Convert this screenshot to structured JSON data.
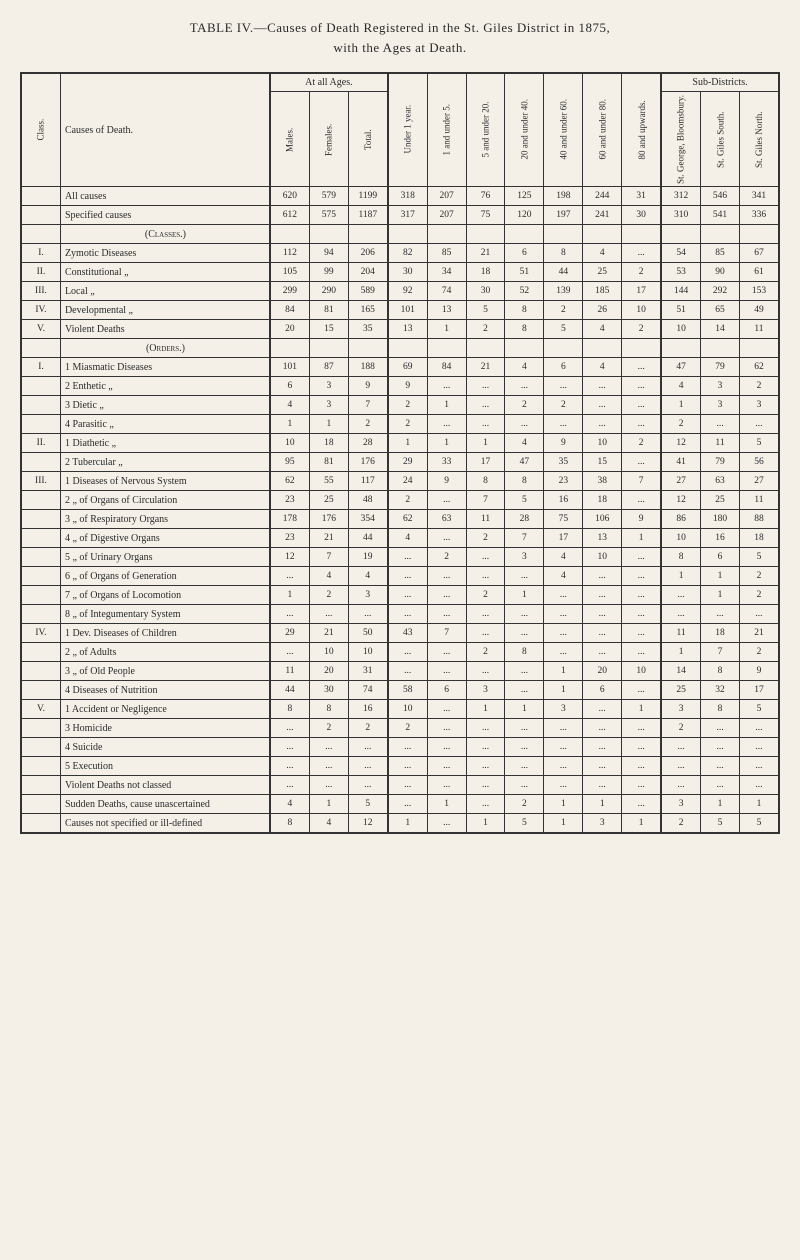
{
  "title": "TABLE IV.—Causes of Death Registered in the St. Giles District in 1875,",
  "subtitle": "with the Ages at Death.",
  "headers": {
    "class": "Class.",
    "causes": "Causes of Death.",
    "allAges": "At all Ages.",
    "males": "Males.",
    "females": "Females.",
    "total": "Total.",
    "under1": "Under 1 year.",
    "and1_5": "1 and under 5.",
    "and5_20": "5 and under 20.",
    "and20_40": "20 and under 40.",
    "and40_60": "40 and under 60.",
    "and60_80": "60 and under 80.",
    "and80up": "80 and upwards.",
    "subDistricts": "Sub-Districts.",
    "stGeorge": "St. George, Bloomsbury.",
    "stGilesSouth": "St. Giles South.",
    "stGilesNorth": "St. Giles North."
  },
  "rows": [
    {
      "class": "",
      "cause": "All causes",
      "m": "620",
      "f": "579",
      "t": "1199",
      "u1": "318",
      "a1": "207",
      "a5": "76",
      "a20": "125",
      "a40": "198",
      "a60": "244",
      "a80": "31",
      "sg": "312",
      "gs": "546",
      "gn": "341"
    },
    {
      "class": "",
      "cause": "Specified causes",
      "m": "612",
      "f": "575",
      "t": "1187",
      "u1": "317",
      "a1": "207",
      "a5": "75",
      "a20": "120",
      "a40": "197",
      "a60": "241",
      "a80": "30",
      "sg": "310",
      "gs": "541",
      "gn": "336"
    },
    {
      "class": "",
      "cause": "(Classes.)",
      "section": true
    },
    {
      "class": "I.",
      "cause": "Zymotic Diseases",
      "m": "112",
      "f": "94",
      "t": "206",
      "u1": "82",
      "a1": "85",
      "a5": "21",
      "a20": "6",
      "a40": "8",
      "a60": "4",
      "a80": "...",
      "sg": "54",
      "gs": "85",
      "gn": "67"
    },
    {
      "class": "II.",
      "cause": "Constitutional „",
      "m": "105",
      "f": "99",
      "t": "204",
      "u1": "30",
      "a1": "34",
      "a5": "18",
      "a20": "51",
      "a40": "44",
      "a60": "25",
      "a80": "2",
      "sg": "53",
      "gs": "90",
      "gn": "61"
    },
    {
      "class": "III.",
      "cause": "Local „",
      "m": "299",
      "f": "290",
      "t": "589",
      "u1": "92",
      "a1": "74",
      "a5": "30",
      "a20": "52",
      "a40": "139",
      "a60": "185",
      "a80": "17",
      "sg": "144",
      "gs": "292",
      "gn": "153"
    },
    {
      "class": "IV.",
      "cause": "Developmental „",
      "m": "84",
      "f": "81",
      "t": "165",
      "u1": "101",
      "a1": "13",
      "a5": "5",
      "a20": "8",
      "a40": "2",
      "a60": "26",
      "a80": "10",
      "sg": "51",
      "gs": "65",
      "gn": "49"
    },
    {
      "class": "V.",
      "cause": "Violent Deaths",
      "m": "20",
      "f": "15",
      "t": "35",
      "u1": "13",
      "a1": "1",
      "a5": "2",
      "a20": "8",
      "a40": "5",
      "a60": "4",
      "a80": "2",
      "sg": "10",
      "gs": "14",
      "gn": "11"
    },
    {
      "class": "",
      "cause": "(Orders.)",
      "section": true
    },
    {
      "class": "I.",
      "cause": "1 Miasmatic Diseases",
      "m": "101",
      "f": "87",
      "t": "188",
      "u1": "69",
      "a1": "84",
      "a5": "21",
      "a20": "4",
      "a40": "6",
      "a60": "4",
      "a80": "...",
      "sg": "47",
      "gs": "79",
      "gn": "62"
    },
    {
      "class": "",
      "cause": "2 Enthetic „",
      "m": "6",
      "f": "3",
      "t": "9",
      "u1": "9",
      "a1": "...",
      "a5": "...",
      "a20": "...",
      "a40": "...",
      "a60": "...",
      "a80": "...",
      "sg": "4",
      "gs": "3",
      "gn": "2"
    },
    {
      "class": "",
      "cause": "3 Dietic „",
      "m": "4",
      "f": "3",
      "t": "7",
      "u1": "2",
      "a1": "1",
      "a5": "...",
      "a20": "2",
      "a40": "2",
      "a60": "...",
      "a80": "...",
      "sg": "1",
      "gs": "3",
      "gn": "3"
    },
    {
      "class": "",
      "cause": "4 Parasitic „",
      "m": "1",
      "f": "1",
      "t": "2",
      "u1": "2",
      "a1": "...",
      "a5": "...",
      "a20": "...",
      "a40": "...",
      "a60": "...",
      "a80": "...",
      "sg": "2",
      "gs": "...",
      "gn": "..."
    },
    {
      "class": "II.",
      "cause": "1 Diathetic „",
      "m": "10",
      "f": "18",
      "t": "28",
      "u1": "1",
      "a1": "1",
      "a5": "1",
      "a20": "4",
      "a40": "9",
      "a60": "10",
      "a80": "2",
      "sg": "12",
      "gs": "11",
      "gn": "5"
    },
    {
      "class": "",
      "cause": "2 Tubercular „",
      "m": "95",
      "f": "81",
      "t": "176",
      "u1": "29",
      "a1": "33",
      "a5": "17",
      "a20": "47",
      "a40": "35",
      "a60": "15",
      "a80": "...",
      "sg": "41",
      "gs": "79",
      "gn": "56"
    },
    {
      "class": "III.",
      "cause": "1 Diseases of Nervous System",
      "m": "62",
      "f": "55",
      "t": "117",
      "u1": "24",
      "a1": "9",
      "a5": "8",
      "a20": "8",
      "a40": "23",
      "a60": "38",
      "a80": "7",
      "sg": "27",
      "gs": "63",
      "gn": "27"
    },
    {
      "class": "",
      "cause": "2 „ of Organs of Circulation",
      "m": "23",
      "f": "25",
      "t": "48",
      "u1": "2",
      "a1": "...",
      "a5": "7",
      "a20": "5",
      "a40": "16",
      "a60": "18",
      "a80": "...",
      "sg": "12",
      "gs": "25",
      "gn": "11"
    },
    {
      "class": "",
      "cause": "3 „ of Respiratory Organs",
      "m": "178",
      "f": "176",
      "t": "354",
      "u1": "62",
      "a1": "63",
      "a5": "11",
      "a20": "28",
      "a40": "75",
      "a60": "106",
      "a80": "9",
      "sg": "86",
      "gs": "180",
      "gn": "88"
    },
    {
      "class": "",
      "cause": "4 „ of Digestive Organs",
      "m": "23",
      "f": "21",
      "t": "44",
      "u1": "4",
      "a1": "...",
      "a5": "2",
      "a20": "7",
      "a40": "17",
      "a60": "13",
      "a80": "1",
      "sg": "10",
      "gs": "16",
      "gn": "18"
    },
    {
      "class": "",
      "cause": "5 „ of Urinary Organs",
      "m": "12",
      "f": "7",
      "t": "19",
      "u1": "...",
      "a1": "2",
      "a5": "...",
      "a20": "3",
      "a40": "4",
      "a60": "10",
      "a80": "...",
      "sg": "8",
      "gs": "6",
      "gn": "5"
    },
    {
      "class": "",
      "cause": "6 „ of Organs of Generation",
      "m": "...",
      "f": "4",
      "t": "4",
      "u1": "...",
      "a1": "...",
      "a5": "...",
      "a20": "...",
      "a40": "4",
      "a60": "...",
      "a80": "...",
      "sg": "1",
      "gs": "1",
      "gn": "2"
    },
    {
      "class": "",
      "cause": "7 „ of Organs of Locomotion",
      "m": "1",
      "f": "2",
      "t": "3",
      "u1": "...",
      "a1": "...",
      "a5": "2",
      "a20": "1",
      "a40": "...",
      "a60": "...",
      "a80": "...",
      "sg": "...",
      "gs": "1",
      "gn": "2"
    },
    {
      "class": "",
      "cause": "8 „ of Integumentary System",
      "m": "...",
      "f": "...",
      "t": "...",
      "u1": "...",
      "a1": "...",
      "a5": "...",
      "a20": "...",
      "a40": "...",
      "a60": "...",
      "a80": "...",
      "sg": "...",
      "gs": "...",
      "gn": "..."
    },
    {
      "class": "IV.",
      "cause": "1 Dev. Diseases of Children",
      "m": "29",
      "f": "21",
      "t": "50",
      "u1": "43",
      "a1": "7",
      "a5": "...",
      "a20": "...",
      "a40": "...",
      "a60": "...",
      "a80": "...",
      "sg": "11",
      "gs": "18",
      "gn": "21"
    },
    {
      "class": "",
      "cause": "2 „ of Adults",
      "m": "...",
      "f": "10",
      "t": "10",
      "u1": "...",
      "a1": "...",
      "a5": "2",
      "a20": "8",
      "a40": "...",
      "a60": "...",
      "a80": "...",
      "sg": "1",
      "gs": "7",
      "gn": "2"
    },
    {
      "class": "",
      "cause": "3 „ of Old People",
      "m": "11",
      "f": "20",
      "t": "31",
      "u1": "...",
      "a1": "...",
      "a5": "...",
      "a20": "...",
      "a40": "1",
      "a60": "20",
      "a80": "10",
      "sg": "14",
      "gs": "8",
      "gn": "9"
    },
    {
      "class": "",
      "cause": "4 Diseases of Nutrition",
      "m": "44",
      "f": "30",
      "t": "74",
      "u1": "58",
      "a1": "6",
      "a5": "3",
      "a20": "...",
      "a40": "1",
      "a60": "6",
      "a80": "...",
      "sg": "25",
      "gs": "32",
      "gn": "17"
    },
    {
      "class": "V.",
      "cause": "1 Accident or Negligence",
      "m": "8",
      "f": "8",
      "t": "16",
      "u1": "10",
      "a1": "...",
      "a5": "1",
      "a20": "1",
      "a40": "3",
      "a60": "...",
      "a80": "1",
      "sg": "3",
      "gs": "8",
      "gn": "5"
    },
    {
      "class": "",
      "cause": "3 Homicide",
      "m": "...",
      "f": "2",
      "t": "2",
      "u1": "2",
      "a1": "...",
      "a5": "...",
      "a20": "...",
      "a40": "...",
      "a60": "...",
      "a80": "...",
      "sg": "2",
      "gs": "...",
      "gn": "..."
    },
    {
      "class": "",
      "cause": "4 Suicide",
      "m": "...",
      "f": "...",
      "t": "...",
      "u1": "...",
      "a1": "...",
      "a5": "...",
      "a20": "...",
      "a40": "...",
      "a60": "...",
      "a80": "...",
      "sg": "...",
      "gs": "...",
      "gn": "..."
    },
    {
      "class": "",
      "cause": "5 Execution",
      "m": "...",
      "f": "...",
      "t": "...",
      "u1": "...",
      "a1": "...",
      "a5": "...",
      "a20": "...",
      "a40": "...",
      "a60": "...",
      "a80": "...",
      "sg": "...",
      "gs": "...",
      "gn": "..."
    },
    {
      "class": "",
      "cause": "Violent Deaths not classed",
      "m": "...",
      "f": "...",
      "t": "...",
      "u1": "...",
      "a1": "...",
      "a5": "...",
      "a20": "...",
      "a40": "...",
      "a60": "...",
      "a80": "...",
      "sg": "...",
      "gs": "...",
      "gn": "..."
    },
    {
      "class": "",
      "cause": "Sudden Deaths, cause unascertained",
      "m": "4",
      "f": "1",
      "t": "5",
      "u1": "...",
      "a1": "1",
      "a5": "...",
      "a20": "2",
      "a40": "1",
      "a60": "1",
      "a80": "...",
      "sg": "3",
      "gs": "1",
      "gn": "1"
    },
    {
      "class": "",
      "cause": "Causes not specified or ill-defined",
      "m": "8",
      "f": "4",
      "t": "12",
      "u1": "1",
      "a1": "...",
      "a5": "1",
      "a20": "5",
      "a40": "1",
      "a60": "3",
      "a80": "1",
      "sg": "2",
      "gs": "5",
      "gn": "5"
    }
  ]
}
